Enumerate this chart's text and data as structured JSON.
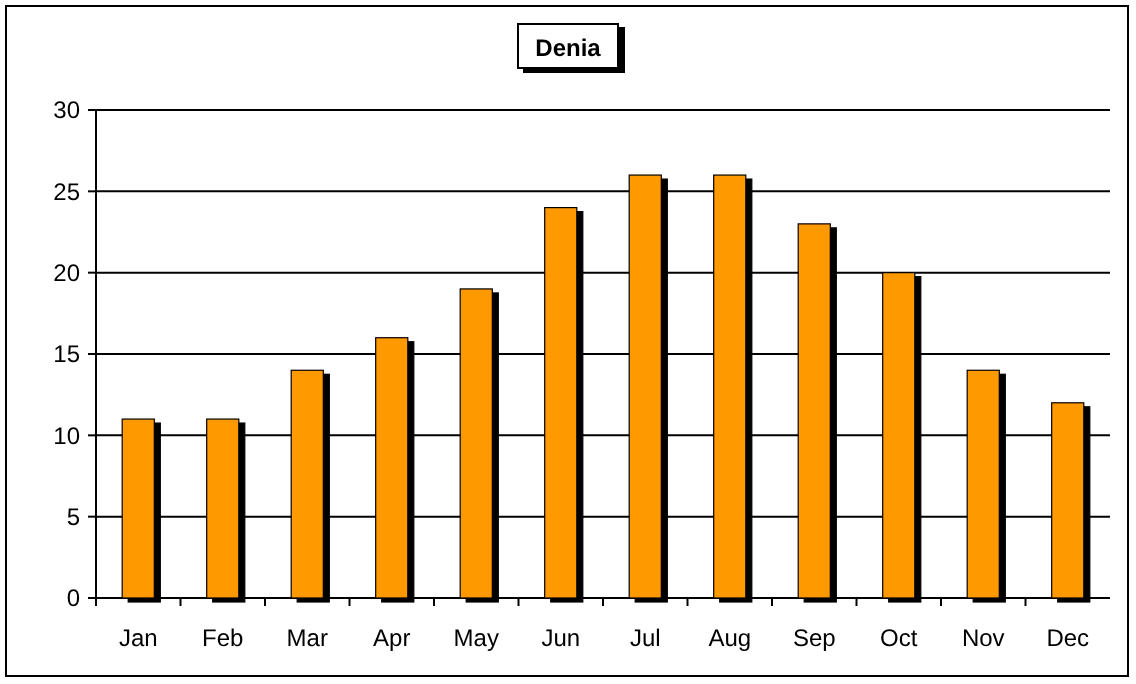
{
  "chart_data": {
    "type": "bar",
    "title": "Denia",
    "categories": [
      "Jan",
      "Feb",
      "Mar",
      "Apr",
      "May",
      "Jun",
      "Jul",
      "Aug",
      "Sep",
      "Oct",
      "Nov",
      "Dec"
    ],
    "values": [
      11,
      11,
      14,
      16,
      19,
      24,
      26,
      26,
      23,
      20,
      14,
      12
    ],
    "color": "#ff9900",
    "ylim": [
      0,
      30
    ],
    "yticks": [
      0,
      5,
      10,
      15,
      20,
      25,
      30
    ],
    "grid": "y"
  }
}
